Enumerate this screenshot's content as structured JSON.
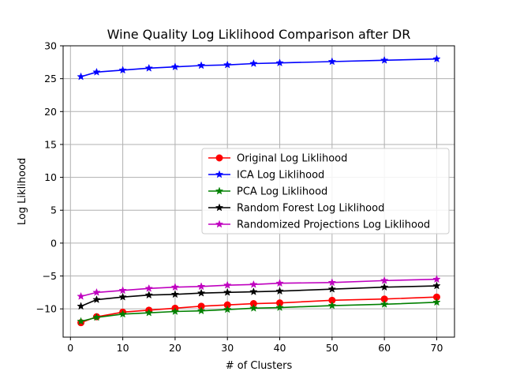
{
  "chart_data": {
    "type": "line",
    "title": "Wine Quality  Log Liklihood Comparison after DR",
    "xlabel": "# of Clusters",
    "ylabel": "Log Liklihood",
    "xlim": [
      -1.4,
      73.4
    ],
    "ylim": [
      -14.3,
      30
    ],
    "xticks": [
      0,
      10,
      20,
      30,
      40,
      50,
      60,
      70
    ],
    "xtick_labels": [
      "0",
      "10",
      "20",
      "30",
      "40",
      "50",
      "60",
      "70"
    ],
    "yticks": [
      -10,
      -5,
      0,
      5,
      10,
      15,
      20,
      25,
      30
    ],
    "ytick_labels": [
      "−10",
      "−5",
      "0",
      "5",
      "10",
      "15",
      "20",
      "25",
      "30"
    ],
    "grid": true,
    "legend_position": "center-right",
    "x": [
      2,
      5,
      10,
      15,
      20,
      25,
      30,
      35,
      40,
      50,
      60,
      70
    ],
    "series": [
      {
        "name": "Original Log Liklihood",
        "color": "#ff0000",
        "marker": "circle",
        "values": [
          -12.1,
          -11.2,
          -10.5,
          -10.2,
          -9.9,
          -9.6,
          -9.4,
          -9.2,
          -9.1,
          -8.7,
          -8.5,
          -8.2
        ]
      },
      {
        "name": "ICA Log Liklihood",
        "color": "#0000ff",
        "marker": "star",
        "values": [
          25.3,
          26.0,
          26.3,
          26.6,
          26.8,
          27.0,
          27.1,
          27.3,
          27.4,
          27.6,
          27.8,
          28.0
        ]
      },
      {
        "name": "PCA Log Liklihood",
        "color": "#008000",
        "marker": "star",
        "values": [
          -11.9,
          -11.3,
          -10.8,
          -10.6,
          -10.4,
          -10.3,
          -10.1,
          -9.9,
          -9.8,
          -9.5,
          -9.3,
          -9.0
        ]
      },
      {
        "name": "Random Forest Log Liklihood",
        "color": "#000000",
        "marker": "star",
        "values": [
          -9.6,
          -8.6,
          -8.2,
          -7.9,
          -7.8,
          -7.6,
          -7.5,
          -7.4,
          -7.3,
          -7.0,
          -6.7,
          -6.5
        ]
      },
      {
        "name": "Randomized Projections Log Liklihood",
        "color": "#bf00bf",
        "marker": "star",
        "values": [
          -8.1,
          -7.5,
          -7.2,
          -6.9,
          -6.7,
          -6.6,
          -6.4,
          -6.3,
          -6.1,
          -6.0,
          -5.7,
          -5.5
        ]
      }
    ]
  }
}
